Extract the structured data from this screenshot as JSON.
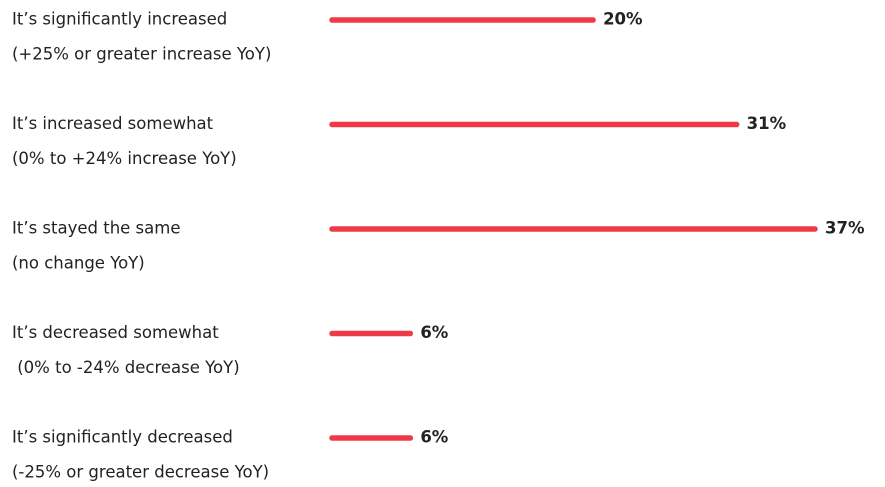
{
  "chart_data": {
    "type": "bar",
    "orientation": "horizontal",
    "categories": [
      [
        "It’s significantly increased",
        "(+25% or greater increase YoY)"
      ],
      [
        "It’s increased somewhat",
        "(0% to +24% increase YoY)"
      ],
      [
        "It’s stayed the same",
        "(no change YoY)"
      ],
      [
        "It’s decreased somewhat",
        " (0% to -24% decrease YoY)"
      ],
      [
        "It’s significantly decreased",
        "(-25% or greater decrease YoY)"
      ]
    ],
    "values": [
      20,
      31,
      37,
      6,
      6
    ],
    "value_labels": [
      "20%",
      "31%",
      "37%",
      "6%",
      "6%"
    ],
    "color": "#ee3a48"
  }
}
